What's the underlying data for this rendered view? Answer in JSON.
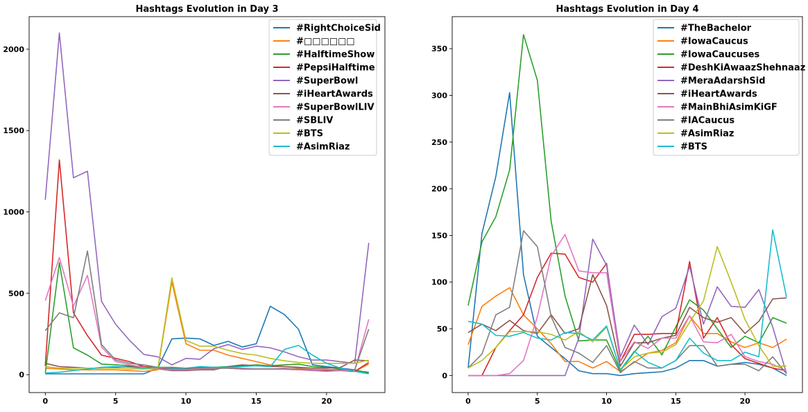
{
  "chart_data": [
    {
      "type": "line",
      "title": "Hashtags Evolution in Day 3",
      "xlabel": "",
      "ylabel": "",
      "xlim": [
        -1.15,
        24.15
      ],
      "ylim": [
        -110,
        2200
      ],
      "xticks": [
        0,
        5,
        10,
        15,
        20
      ],
      "yticks": [
        0,
        500,
        1000,
        1500,
        2000
      ],
      "grid": false,
      "legend_position": "top-right",
      "x": [
        0,
        1,
        2,
        3,
        4,
        5,
        6,
        7,
        8,
        9,
        10,
        11,
        12,
        13,
        14,
        15,
        16,
        17,
        18,
        19,
        20,
        21,
        22,
        23
      ],
      "series": [
        {
          "name": "#RightChoiceSid",
          "color": "#1f77b4",
          "values": [
            5,
            5,
            5,
            5,
            5,
            5,
            5,
            5,
            40,
            220,
            225,
            220,
            180,
            205,
            170,
            190,
            420,
            370,
            280,
            60,
            50,
            40,
            30,
            10
          ]
        },
        {
          "name": "#□□□□□□",
          "color": "#ff7f0e",
          "values": [
            40,
            35,
            30,
            30,
            30,
            30,
            25,
            20,
            30,
            570,
            190,
            150,
            150,
            120,
            100,
            80,
            60,
            50,
            40,
            30,
            30,
            30,
            20,
            65
          ]
        },
        {
          "name": "#HalftimeShow",
          "color": "#2ca02c",
          "values": [
            10,
            690,
            165,
            120,
            65,
            60,
            55,
            50,
            45,
            45,
            40,
            45,
            45,
            50,
            55,
            60,
            55,
            60,
            65,
            50,
            45,
            35,
            25,
            15
          ]
        },
        {
          "name": "#PepsiHalftime",
          "color": "#d62728",
          "values": [
            55,
            1320,
            380,
            240,
            120,
            100,
            80,
            50,
            40,
            35,
            35,
            35,
            40,
            40,
            35,
            35,
            35,
            35,
            30,
            30,
            25,
            25,
            20,
            75
          ]
        },
        {
          "name": "#SuperBowl",
          "color": "#9467bd",
          "values": [
            1075,
            2100,
            1210,
            1250,
            450,
            310,
            210,
            125,
            110,
            60,
            100,
            95,
            160,
            185,
            155,
            175,
            165,
            140,
            110,
            90,
            90,
            80,
            70,
            810
          ]
        },
        {
          "name": "#iHeartAwards",
          "color": "#8c564b",
          "values": [
            70,
            50,
            45,
            40,
            40,
            45,
            50,
            45,
            35,
            25,
            25,
            30,
            30,
            50,
            60,
            55,
            50,
            50,
            45,
            40,
            40,
            45,
            90,
            85
          ]
        },
        {
          "name": "#SuperBowlLIV",
          "color": "#e377c2",
          "values": [
            455,
            720,
            420,
            610,
            170,
            80,
            60,
            45,
            35,
            30,
            30,
            35,
            35,
            45,
            40,
            35,
            35,
            40,
            30,
            25,
            20,
            25,
            25,
            340
          ]
        },
        {
          "name": "#SBLIV",
          "color": "#7f7f7f",
          "values": [
            270,
            380,
            350,
            760,
            185,
            90,
            70,
            60,
            45,
            40,
            40,
            40,
            40,
            40,
            35,
            35,
            35,
            35,
            35,
            30,
            30,
            30,
            30,
            280
          ]
        },
        {
          "name": "#BTS",
          "color": "#bcbd22",
          "values": [
            50,
            40,
            40,
            40,
            40,
            40,
            35,
            35,
            35,
            595,
            210,
            175,
            175,
            150,
            130,
            120,
            100,
            85,
            75,
            70,
            70,
            70,
            70,
            90
          ]
        },
        {
          "name": "#AsimRiaz",
          "color": "#17becf",
          "values": [
            10,
            15,
            25,
            35,
            45,
            50,
            45,
            40,
            45,
            40,
            40,
            50,
            45,
            45,
            50,
            55,
            50,
            155,
            180,
            120,
            70,
            40,
            20,
            5
          ]
        }
      ]
    },
    {
      "type": "line",
      "title": "Hashtags Evolution in Day 4",
      "xlabel": "",
      "ylabel": "",
      "xlim": [
        -1.15,
        24.15
      ],
      "ylim": [
        -18.3,
        384.3
      ],
      "xticks": [
        0,
        5,
        10,
        15,
        20
      ],
      "yticks": [
        0,
        50,
        100,
        150,
        200,
        250,
        300,
        350
      ],
      "grid": false,
      "legend_position": "top-right",
      "x": [
        0,
        1,
        2,
        3,
        4,
        5,
        6,
        7,
        8,
        9,
        10,
        11,
        12,
        13,
        14,
        15,
        16,
        17,
        18,
        19,
        20,
        21,
        22,
        23
      ],
      "series": [
        {
          "name": "#TheBachelor",
          "color": "#1f77b4",
          "values": [
            8,
            152,
            213,
            303,
            108,
            42,
            30,
            18,
            5,
            2,
            2,
            0,
            2,
            3,
            4,
            8,
            16,
            16,
            10,
            12,
            14,
            12,
            8,
            0
          ]
        },
        {
          "name": "#IowaCaucus",
          "color": "#ff7f0e",
          "values": [
            33,
            74,
            85,
            94,
            65,
            50,
            34,
            15,
            15,
            8,
            15,
            4,
            14,
            24,
            27,
            35,
            64,
            45,
            45,
            36,
            30,
            35,
            30,
            39
          ]
        },
        {
          "name": "#IowaCaucuses",
          "color": "#2ca02c",
          "values": [
            75,
            143,
            170,
            220,
            365,
            316,
            165,
            85,
            37,
            38,
            38,
            5,
            25,
            42,
            22,
            52,
            81,
            70,
            50,
            30,
            42,
            35,
            62,
            56
          ]
        },
        {
          "name": "#DeshKiAwaazShehnaaz",
          "color": "#d62728",
          "values": [
            0,
            0,
            30,
            48,
            65,
            105,
            131,
            130,
            105,
            100,
            120,
            15,
            44,
            44,
            45,
            45,
            122,
            40,
            62,
            33,
            18,
            13,
            8,
            5
          ]
        },
        {
          "name": "#MeraAdarshSid",
          "color": "#9467bd",
          "values": [
            0,
            0,
            0,
            0,
            0,
            0,
            0,
            0,
            40,
            146,
            118,
            20,
            54,
            33,
            63,
            72,
            117,
            55,
            95,
            74,
            73,
            92,
            52,
            2
          ]
        },
        {
          "name": "#iHeartAwards",
          "color": "#8c564b",
          "values": [
            46,
            55,
            48,
            59,
            48,
            45,
            65,
            45,
            50,
            108,
            75,
            10,
            35,
            35,
            40,
            43,
            73,
            62,
            57,
            62,
            45,
            58,
            82,
            83
          ]
        },
        {
          "name": "#MainBhiAsimKiGF",
          "color": "#e377c2",
          "values": [
            0,
            0,
            0,
            2,
            16,
            63,
            128,
            151,
            112,
            110,
            110,
            15,
            36,
            29,
            40,
            40,
            64,
            36,
            35,
            44,
            20,
            15,
            12,
            5
          ]
        },
        {
          "name": "#IACaucus",
          "color": "#7f7f7f",
          "values": [
            8,
            23,
            65,
            73,
            155,
            138,
            63,
            30,
            24,
            14,
            32,
            3,
            15,
            8,
            8,
            16,
            32,
            32,
            10,
            12,
            12,
            5,
            20,
            2
          ]
        },
        {
          "name": "#AsimRiaz",
          "color": "#bcbd22",
          "values": [
            8,
            16,
            30,
            47,
            47,
            47,
            44,
            38,
            47,
            36,
            52,
            6,
            20,
            24,
            25,
            33,
            57,
            80,
            138,
            100,
            60,
            32,
            10,
            10
          ]
        },
        {
          "name": "#BTS",
          "color": "#17becf",
          "values": [
            58,
            55,
            43,
            42,
            46,
            40,
            38,
            46,
            45,
            38,
            53,
            6,
            26,
            14,
            8,
            16,
            40,
            24,
            16,
            16,
            25,
            20,
            156,
            84
          ]
        }
      ]
    }
  ]
}
